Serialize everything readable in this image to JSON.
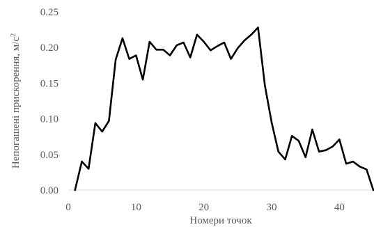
{
  "chart_data": {
    "type": "line",
    "title": "",
    "xlabel": "Номери точок",
    "ylabel_text": "Непогашені прискорення, м/с",
    "ylabel_sup": "2",
    "xlim": [
      0,
      45
    ],
    "ylim": [
      0,
      0.25
    ],
    "x_ticks": [
      "0",
      "10",
      "20",
      "30",
      "40"
    ],
    "y_ticks": [
      "0.00",
      "0.05",
      "0.10",
      "0.15",
      "0.20",
      "0.25"
    ],
    "grid": false,
    "legend": "none",
    "colors": {
      "series": "#000000",
      "tick_text": "#595959",
      "axis": "#d9d9d9"
    },
    "x": [
      1,
      2,
      3,
      4,
      5,
      6,
      7,
      8,
      9,
      10,
      11,
      12,
      13,
      14,
      15,
      16,
      17,
      18,
      19,
      20,
      21,
      22,
      23,
      24,
      25,
      26,
      27,
      28,
      29,
      30,
      31,
      32,
      33,
      34,
      35,
      36,
      37,
      38,
      39,
      40,
      41,
      42,
      43,
      44,
      45
    ],
    "values": [
      0.0,
      0.04,
      0.03,
      0.094,
      0.082,
      0.097,
      0.183,
      0.213,
      0.184,
      0.189,
      0.155,
      0.208,
      0.197,
      0.197,
      0.189,
      0.203,
      0.207,
      0.186,
      0.218,
      0.208,
      0.196,
      0.202,
      0.207,
      0.184,
      0.199,
      0.21,
      0.218,
      0.228,
      0.147,
      0.095,
      0.054,
      0.043,
      0.076,
      0.069,
      0.046,
      0.085,
      0.054,
      0.056,
      0.061,
      0.071,
      0.037,
      0.04,
      0.033,
      0.029,
      0.0
    ]
  }
}
